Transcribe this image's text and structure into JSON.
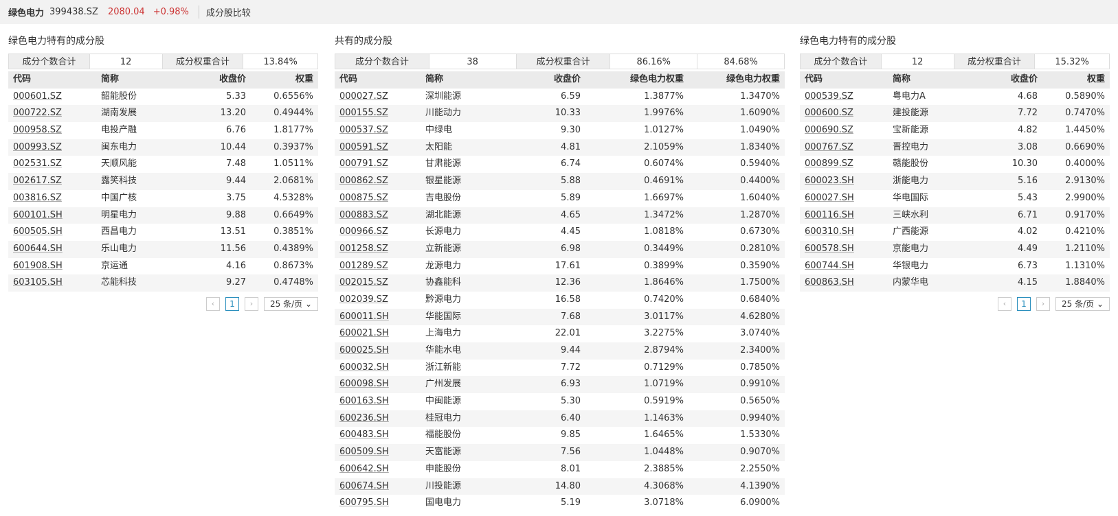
{
  "header": {
    "title": "绿色电力",
    "code": "399438.SZ",
    "price": "2080.04",
    "change": "+0.98%",
    "tab": "成分股比较"
  },
  "panels": [
    {
      "title": "绿色电力特有的成分股",
      "summary": [
        "成分个数合计",
        "12",
        "成分权重合计",
        "13.84%"
      ],
      "columns": [
        "代码",
        "简称",
        "收盘价",
        "权重"
      ],
      "rows": [
        [
          "000601.SZ",
          "韶能股份",
          "5.33",
          "0.6556%"
        ],
        [
          "000722.SZ",
          "湖南发展",
          "13.20",
          "0.4944%"
        ],
        [
          "000958.SZ",
          "电投产融",
          "6.76",
          "1.8177%"
        ],
        [
          "000993.SZ",
          "闽东电力",
          "10.44",
          "0.3937%"
        ],
        [
          "002531.SZ",
          "天顺风能",
          "7.48",
          "1.0511%"
        ],
        [
          "002617.SZ",
          "露笑科技",
          "9.44",
          "2.0681%"
        ],
        [
          "003816.SZ",
          "中国广核",
          "3.75",
          "4.5328%"
        ],
        [
          "600101.SH",
          "明星电力",
          "9.88",
          "0.6649%"
        ],
        [
          "600505.SH",
          "西昌电力",
          "13.51",
          "0.3851%"
        ],
        [
          "600644.SH",
          "乐山电力",
          "11.56",
          "0.4389%"
        ],
        [
          "601908.SH",
          "京运通",
          "4.16",
          "0.8673%"
        ],
        [
          "603105.SH",
          "芯能科技",
          "9.27",
          "0.4748%"
        ]
      ],
      "page": "1",
      "page_size": "25 条/页"
    },
    {
      "title": "共有的成分股",
      "summary": [
        "成分个数合计",
        "38",
        "成分权重合计",
        "86.16%",
        "84.68%"
      ],
      "columns": [
        "代码",
        "简称",
        "收盘价",
        "绿色电力权重",
        "绿色电力权重"
      ],
      "rows": [
        [
          "000027.SZ",
          "深圳能源",
          "6.59",
          "1.3877%",
          "1.3470%"
        ],
        [
          "000155.SZ",
          "川能动力",
          "10.33",
          "1.9976%",
          "1.6090%"
        ],
        [
          "000537.SZ",
          "中绿电",
          "9.30",
          "1.0127%",
          "1.0490%"
        ],
        [
          "000591.SZ",
          "太阳能",
          "4.81",
          "2.1059%",
          "1.8340%"
        ],
        [
          "000791.SZ",
          "甘肃能源",
          "6.74",
          "0.6074%",
          "0.5940%"
        ],
        [
          "000862.SZ",
          "银星能源",
          "5.88",
          "0.4691%",
          "0.4400%"
        ],
        [
          "000875.SZ",
          "吉电股份",
          "5.89",
          "1.6697%",
          "1.6040%"
        ],
        [
          "000883.SZ",
          "湖北能源",
          "4.65",
          "1.3472%",
          "1.2870%"
        ],
        [
          "000966.SZ",
          "长源电力",
          "4.45",
          "1.0818%",
          "0.6730%"
        ],
        [
          "001258.SZ",
          "立新能源",
          "6.98",
          "0.3449%",
          "0.2810%"
        ],
        [
          "001289.SZ",
          "龙源电力",
          "17.61",
          "0.3899%",
          "0.3590%"
        ],
        [
          "002015.SZ",
          "协鑫能科",
          "12.36",
          "1.8646%",
          "1.7500%"
        ],
        [
          "002039.SZ",
          "黔源电力",
          "16.58",
          "0.7420%",
          "0.6840%"
        ],
        [
          "600011.SH",
          "华能国际",
          "7.68",
          "3.0117%",
          "4.6280%"
        ],
        [
          "600021.SH",
          "上海电力",
          "22.01",
          "3.2275%",
          "3.0740%"
        ],
        [
          "600025.SH",
          "华能水电",
          "9.44",
          "2.8794%",
          "2.3400%"
        ],
        [
          "600032.SH",
          "浙江新能",
          "7.72",
          "0.7129%",
          "0.7850%"
        ],
        [
          "600098.SH",
          "广州发展",
          "6.93",
          "1.0719%",
          "0.9910%"
        ],
        [
          "600163.SH",
          "中闽能源",
          "5.30",
          "0.5919%",
          "0.5650%"
        ],
        [
          "600236.SH",
          "桂冠电力",
          "6.40",
          "1.1463%",
          "0.9940%"
        ],
        [
          "600483.SH",
          "福能股份",
          "9.85",
          "1.6465%",
          "1.5330%"
        ],
        [
          "600509.SH",
          "天富能源",
          "7.56",
          "1.0448%",
          "0.9070%"
        ],
        [
          "600642.SH",
          "申能股份",
          "8.01",
          "2.3885%",
          "2.2550%"
        ],
        [
          "600674.SH",
          "川投能源",
          "14.80",
          "4.3068%",
          "4.1390%"
        ],
        [
          "600795.SH",
          "国电电力",
          "5.19",
          "3.0718%",
          "6.0900%"
        ]
      ]
    },
    {
      "title": "绿色电力特有的成分股",
      "summary": [
        "成分个数合计",
        "12",
        "成分权重合计",
        "15.32%"
      ],
      "columns": [
        "代码",
        "简称",
        "收盘价",
        "权重"
      ],
      "rows": [
        [
          "000539.SZ",
          "粤电力A",
          "4.68",
          "0.5890%"
        ],
        [
          "000600.SZ",
          "建投能源",
          "7.72",
          "0.7470%"
        ],
        [
          "000690.SZ",
          "宝新能源",
          "4.82",
          "1.4450%"
        ],
        [
          "000767.SZ",
          "晋控电力",
          "3.08",
          "0.6690%"
        ],
        [
          "000899.SZ",
          "赣能股份",
          "10.30",
          "0.4000%"
        ],
        [
          "600023.SH",
          "浙能电力",
          "5.16",
          "2.9130%"
        ],
        [
          "600027.SH",
          "华电国际",
          "5.43",
          "2.9900%"
        ],
        [
          "600116.SH",
          "三峡水利",
          "6.71",
          "0.9170%"
        ],
        [
          "600310.SH",
          "广西能源",
          "4.02",
          "0.4210%"
        ],
        [
          "600578.SH",
          "京能电力",
          "4.49",
          "1.2110%"
        ],
        [
          "600744.SH",
          "华银电力",
          "6.73",
          "1.1310%"
        ],
        [
          "600863.SH",
          "内蒙华电",
          "4.15",
          "1.8840%"
        ]
      ],
      "page": "1",
      "page_size": "25 条/页"
    }
  ]
}
